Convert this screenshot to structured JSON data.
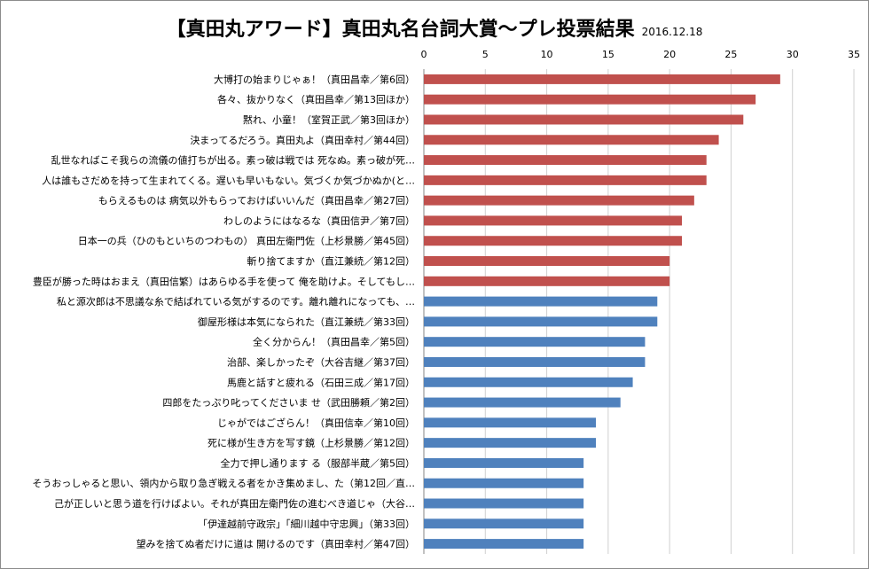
{
  "chart_data": {
    "type": "bar",
    "orientation": "horizontal",
    "title": "【真田丸アワード】真田丸名台詞大賞～プレ投票結果",
    "date": "2016.12.18",
    "xlim": [
      0,
      35
    ],
    "xticks": [
      "0",
      "5",
      "10",
      "15",
      "20",
      "25",
      "30",
      "35"
    ],
    "grid": true,
    "colors": {
      "top": "#c0504d",
      "rest": "#4f81bd"
    },
    "categories": [
      "大博打の始まりじゃぁ！（真田昌幸／第6回）",
      "各々、抜かりなく（真田昌幸／第13回ほか）",
      "黙れ、小童！（室賀正武／第3回ほか）",
      "決まってるだろう。真田丸よ（真田幸村／第44回）",
      "乱世なればこそ我らの流儀の値打ちが出る。素っ破は戦では 死なぬ。素っ破が死…",
      "人は誰もさだめを持って生まれてくる。遅いも早いもない。気づくか気づかぬか(と…",
      "もらえるものは 病気以外もらっておけばいいんだ（真田昌幸／第27回）",
      "わしのようにはなるな（真田信尹／第7回）",
      "日本一の兵（ひのもといちのつわもの） 真田左衛門佐（上杉景勝／第45回）",
      "斬り捨てますか（直江兼続／第12回）",
      "豊臣が勝った時はおまえ（真田信繁）はあらゆる手を使って 俺を助けよ。そしてもし…",
      "私と源次郎は不思議な糸で結ばれている気がするのです。離れ離れになっても、…",
      "御屋形様は本気になられた（直江兼続／第33回）",
      "全く分からん！（真田昌幸／第5回）",
      "治部、楽しかったぞ（大谷吉継／第37回）",
      "馬鹿と話すと疲れる（石田三成／第17回）",
      "四郎をたっぷり叱ってくださいま せ（武田勝頼／第2回）",
      "じゃがではござらん！（真田信幸／第10回）",
      "死に様が生き方を写す鏡（上杉景勝／第12回）",
      "全力で押し通ります る（服部半蔵／第5回）",
      "そうおっしゃると思い、領内から取り急ぎ戦える者をかき集めまし、た（第12回／直…",
      "己が正しいと思う道を行けばよい。それが真田左衛門佐の進むべき道じゃ（大谷…",
      "「伊達越前守政宗」「細川越中守忠興」（第33回）",
      "望みを捨てぬ者だけに道は 開けるのです（真田幸村／第47回）"
    ],
    "values": [
      29,
      27,
      26,
      24,
      23,
      23,
      22,
      21,
      21,
      20,
      20,
      19,
      19,
      18,
      18,
      17,
      16,
      14,
      14,
      13,
      13,
      13,
      13,
      13
    ],
    "highlight_count": 11
  }
}
